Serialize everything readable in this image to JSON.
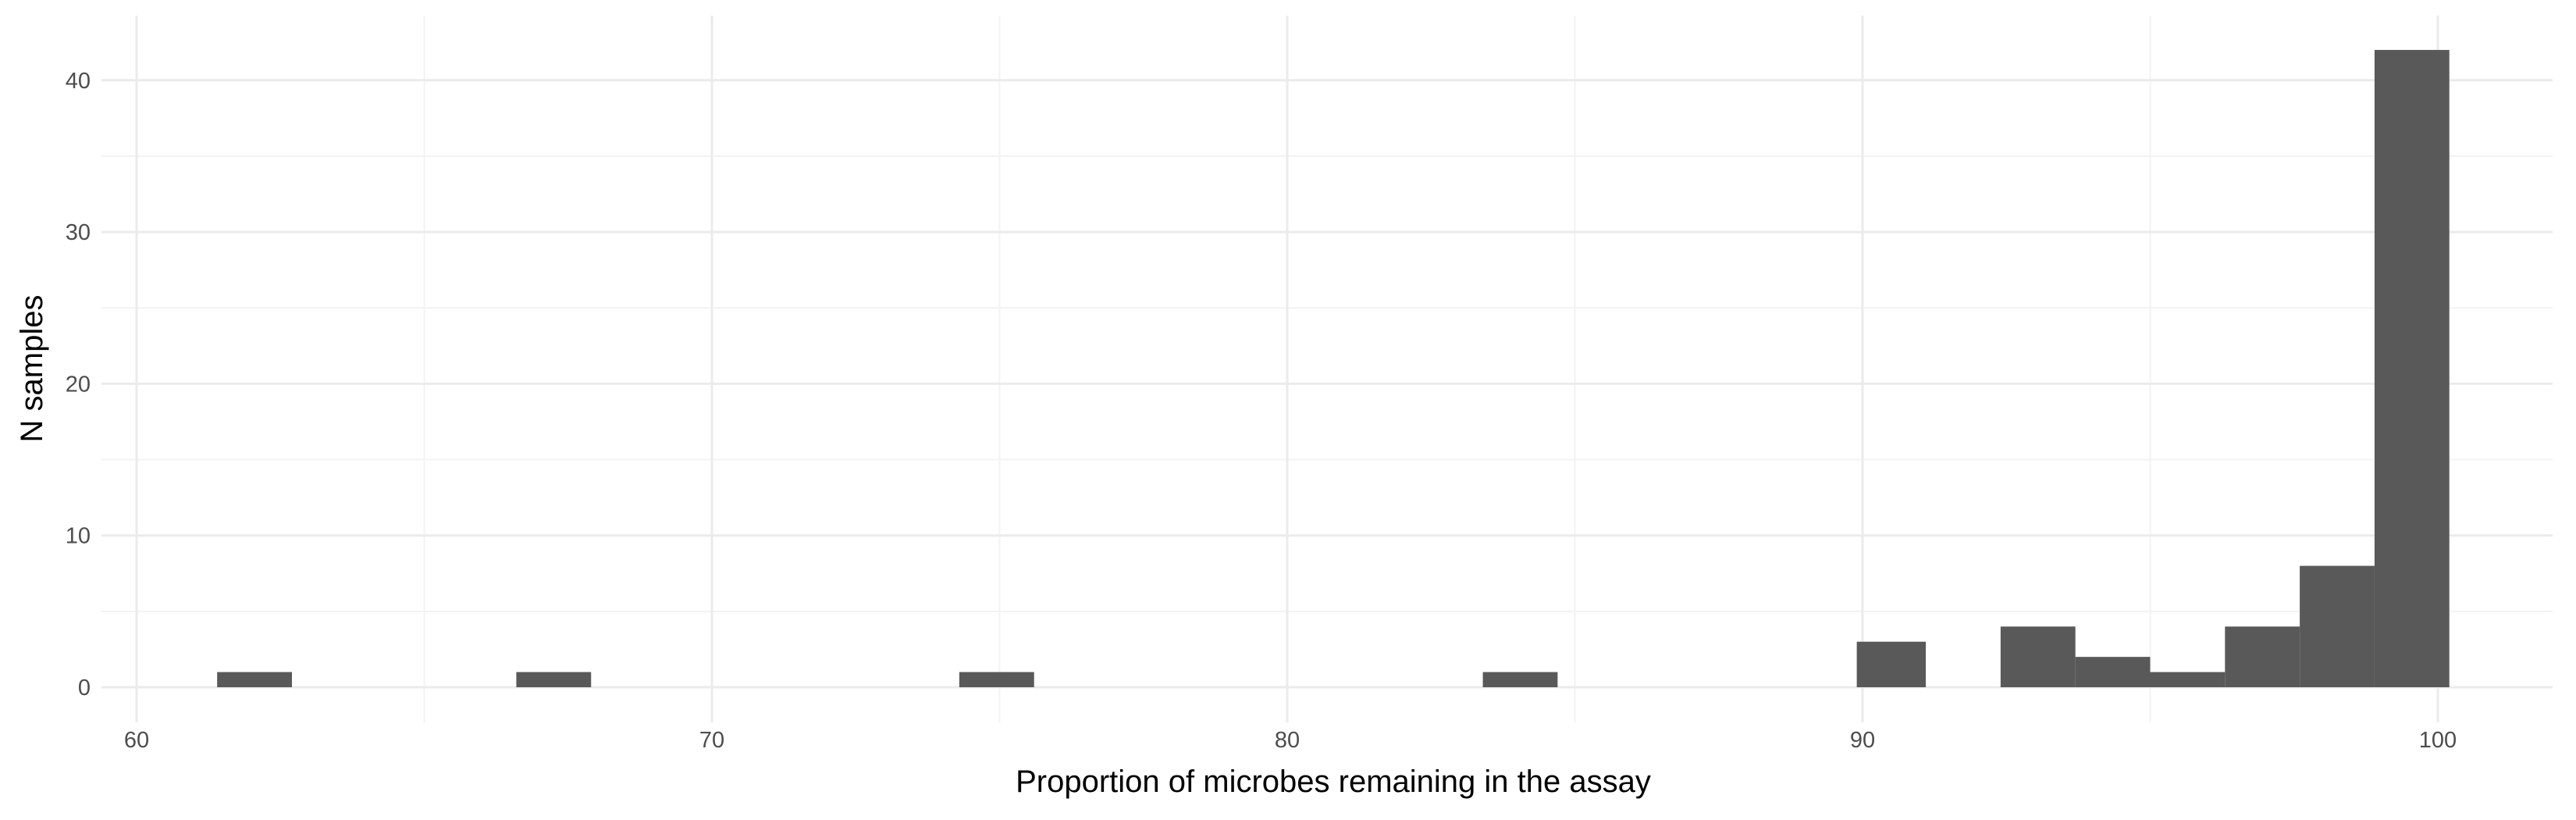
{
  "chart_data": {
    "type": "bar",
    "title": "",
    "xlabel": "Proportion of microbes remaining in the assay",
    "ylabel": "N samples",
    "xlim": [
      59.4,
      102.3
    ],
    "ylim": [
      0,
      42
    ],
    "x_ticks": [
      "60",
      "70",
      "80",
      "90",
      "100"
    ],
    "y_ticks": [
      "0",
      "10",
      "20",
      "30",
      "40"
    ],
    "grid": true,
    "bars": [
      {
        "x0": 61.4,
        "x1": 62.7,
        "count": 1
      },
      {
        "x0": 66.6,
        "x1": 67.9,
        "count": 1
      },
      {
        "x0": 74.3,
        "x1": 75.6,
        "count": 1
      },
      {
        "x0": 83.4,
        "x1": 84.7,
        "count": 1
      },
      {
        "x0": 89.9,
        "x1": 91.1,
        "count": 3
      },
      {
        "x0": 92.4,
        "x1": 93.7,
        "count": 4
      },
      {
        "x0": 93.7,
        "x1": 95.0,
        "count": 2
      },
      {
        "x0": 95.0,
        "x1": 96.3,
        "count": 1
      },
      {
        "x0": 96.3,
        "x1": 97.6,
        "count": 4
      },
      {
        "x0": 97.6,
        "x1": 98.9,
        "count": 8
      },
      {
        "x0": 98.9,
        "x1": 100.2,
        "count": 42
      }
    ],
    "colors": {
      "bar": "#595959",
      "grid_major": "#ebebeb",
      "grid_minor": "#f3f3f3"
    }
  }
}
